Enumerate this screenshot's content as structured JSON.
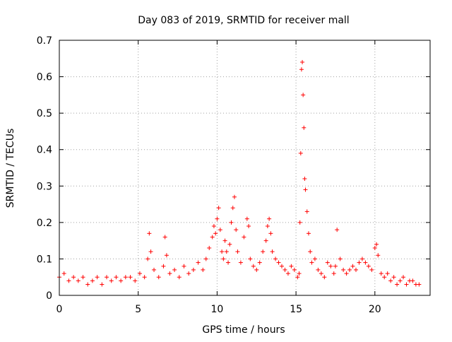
{
  "chart_data": {
    "type": "scatter",
    "title": "Day 083 of 2019, SRMTID for receiver mall",
    "xlabel": "GPS time / hours",
    "ylabel": "SRMTID / TECUs",
    "xlim": [
      0,
      23.5
    ],
    "ylim": [
      0,
      0.7
    ],
    "x_ticks": [
      0,
      5,
      10,
      15,
      20
    ],
    "x_tick_labels": [
      "0",
      "5",
      "10",
      "15",
      "20"
    ],
    "y_ticks": [
      0,
      0.1,
      0.2,
      0.3,
      0.4,
      0.5,
      0.6,
      0.7
    ],
    "y_tick_labels": [
      "0",
      "0.1",
      "0.2",
      "0.3",
      "0.4",
      "0.5",
      "0.6",
      "0.7"
    ],
    "grid": true,
    "marker": "+",
    "marker_color": "#ff0000",
    "series": [
      {
        "name": "SRMTID",
        "x": [
          0.0,
          0.3,
          0.6,
          0.9,
          1.2,
          1.5,
          1.8,
          2.1,
          2.4,
          2.7,
          3.0,
          3.3,
          3.6,
          3.9,
          4.2,
          4.5,
          4.8,
          5.1,
          5.4,
          5.6,
          5.7,
          5.8,
          6.0,
          6.3,
          6.6,
          6.7,
          6.8,
          7.0,
          7.3,
          7.6,
          7.9,
          8.2,
          8.5,
          8.8,
          9.1,
          9.3,
          9.5,
          9.7,
          9.8,
          9.9,
          10.0,
          10.1,
          10.2,
          10.3,
          10.4,
          10.5,
          10.6,
          10.7,
          10.8,
          10.9,
          11.0,
          11.1,
          11.2,
          11.3,
          11.5,
          11.7,
          11.9,
          12.0,
          12.1,
          12.3,
          12.5,
          12.7,
          12.9,
          13.1,
          13.2,
          13.3,
          13.4,
          13.5,
          13.7,
          13.9,
          14.1,
          14.3,
          14.5,
          14.7,
          14.9,
          15.1,
          15.2,
          15.25,
          15.3,
          15.35,
          15.4,
          15.45,
          15.5,
          15.55,
          15.6,
          15.7,
          15.8,
          15.9,
          16.0,
          16.2,
          16.4,
          16.6,
          16.8,
          17.0,
          17.2,
          17.4,
          17.5,
          17.6,
          17.8,
          18.0,
          18.2,
          18.4,
          18.6,
          18.8,
          19.0,
          19.2,
          19.4,
          19.6,
          19.8,
          20.0,
          20.1,
          20.2,
          20.4,
          20.6,
          20.8,
          21.0,
          21.2,
          21.4,
          21.6,
          21.8,
          22.0,
          22.2,
          22.4,
          22.6,
          22.8
        ],
        "y": [
          0.05,
          0.06,
          0.04,
          0.05,
          0.04,
          0.05,
          0.03,
          0.04,
          0.05,
          0.03,
          0.05,
          0.04,
          0.05,
          0.04,
          0.05,
          0.05,
          0.04,
          0.06,
          0.05,
          0.1,
          0.17,
          0.12,
          0.07,
          0.05,
          0.08,
          0.16,
          0.11,
          0.06,
          0.07,
          0.05,
          0.08,
          0.06,
          0.07,
          0.09,
          0.07,
          0.1,
          0.13,
          0.16,
          0.19,
          0.17,
          0.21,
          0.24,
          0.18,
          0.12,
          0.1,
          0.15,
          0.12,
          0.09,
          0.14,
          0.2,
          0.24,
          0.27,
          0.18,
          0.12,
          0.09,
          0.16,
          0.21,
          0.19,
          0.1,
          0.08,
          0.07,
          0.09,
          0.12,
          0.15,
          0.19,
          0.21,
          0.17,
          0.12,
          0.1,
          0.09,
          0.08,
          0.07,
          0.06,
          0.08,
          0.07,
          0.05,
          0.06,
          0.2,
          0.39,
          0.62,
          0.64,
          0.55,
          0.46,
          0.32,
          0.29,
          0.23,
          0.17,
          0.12,
          0.09,
          0.1,
          0.07,
          0.06,
          0.05,
          0.09,
          0.08,
          0.06,
          0.08,
          0.18,
          0.1,
          0.07,
          0.06,
          0.07,
          0.08,
          0.07,
          0.09,
          0.1,
          0.09,
          0.08,
          0.07,
          0.13,
          0.14,
          0.11,
          0.06,
          0.05,
          0.06,
          0.04,
          0.05,
          0.03,
          0.04,
          0.05,
          0.03,
          0.04,
          0.04,
          0.03,
          0.03
        ]
      }
    ]
  }
}
